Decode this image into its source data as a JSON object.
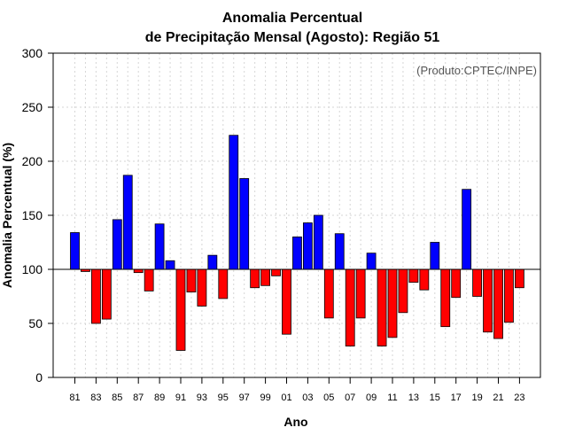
{
  "chart_data": {
    "type": "bar",
    "title_line1": "Anomalia Percentual",
    "title_line2": "de Precipitação Mensal (Agosto): Região 51",
    "source_note": "(Produto:CPTEC/INPE)",
    "xlabel": "Ano",
    "ylabel": "Anomalia Percentual (%)",
    "ylim": [
      0,
      300
    ],
    "yticks": [
      0,
      50,
      100,
      150,
      200,
      250,
      300
    ],
    "baseline": 100,
    "grid": true,
    "colors": {
      "above": "#0000ff",
      "below": "#ff0000"
    },
    "categories": [
      "81",
      "82",
      "83",
      "84",
      "85",
      "86",
      "87",
      "88",
      "89",
      "90",
      "91",
      "92",
      "93",
      "94",
      "95",
      "96",
      "97",
      "98",
      "99",
      "00",
      "01",
      "02",
      "03",
      "04",
      "05",
      "06",
      "07",
      "08",
      "09",
      "10",
      "11",
      "12",
      "13",
      "14",
      "15",
      "16",
      "17",
      "18",
      "19",
      "20",
      "21",
      "22",
      "23"
    ],
    "xtick_labels": [
      "81",
      "83",
      "85",
      "87",
      "89",
      "91",
      "93",
      "95",
      "97",
      "99",
      "01",
      "03",
      "05",
      "07",
      "09",
      "11",
      "13",
      "15",
      "17",
      "19",
      "21",
      "23"
    ],
    "values": [
      134,
      98,
      50,
      54,
      146,
      187,
      97,
      80,
      142,
      108,
      25,
      79,
      66,
      113,
      73,
      224,
      184,
      83,
      85,
      94,
      40,
      130,
      143,
      150,
      55,
      133,
      29,
      55,
      115,
      29,
      37,
      60,
      88,
      81,
      125,
      47,
      74,
      174,
      75,
      42,
      36,
      51,
      83
    ]
  }
}
